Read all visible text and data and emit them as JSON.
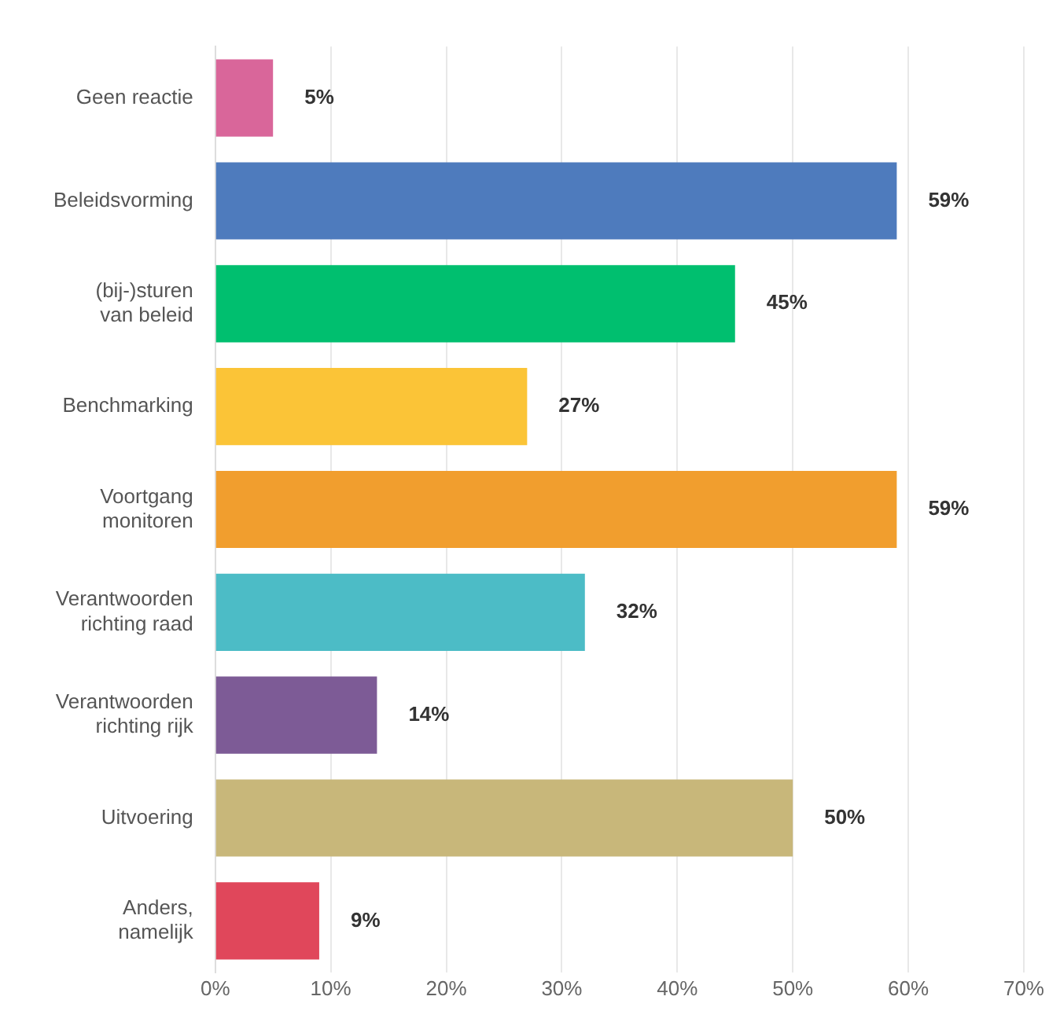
{
  "chart_data": {
    "type": "bar",
    "orientation": "horizontal",
    "categories": [
      "Geen reactie",
      "Beleidsvorming",
      "(bij-)sturen van beleid",
      "Benchmarking",
      "Voortgang monitoren",
      "Verantwoorden richting raad",
      "Verantwoorden richting rijk",
      "Uitvoering",
      "Anders, namelijk"
    ],
    "values": [
      5,
      59,
      45,
      27,
      59,
      32,
      14,
      50,
      9
    ],
    "colors": [
      "#d9669a",
      "#4e7bbd",
      "#00bf6f",
      "#fbc437",
      "#f19e2e",
      "#4cbcc6",
      "#7d5b96",
      "#c8b77a",
      "#e0475b"
    ],
    "value_labels": [
      "5%",
      "59%",
      "45%",
      "27%",
      "59%",
      "32%",
      "14%",
      "50%",
      "9%"
    ],
    "xlim": [
      0,
      70
    ],
    "xticks": [
      {
        "value": 0,
        "label": "0%"
      },
      {
        "value": 10,
        "label": "10%"
      },
      {
        "value": 20,
        "label": "20%"
      },
      {
        "value": 30,
        "label": "30%"
      },
      {
        "value": 40,
        "label": "40%"
      },
      {
        "value": 50,
        "label": "50%"
      },
      {
        "value": 60,
        "label": "60%"
      },
      {
        "value": 70,
        "label": "70%"
      }
    ],
    "grid": "x",
    "legend": false
  }
}
